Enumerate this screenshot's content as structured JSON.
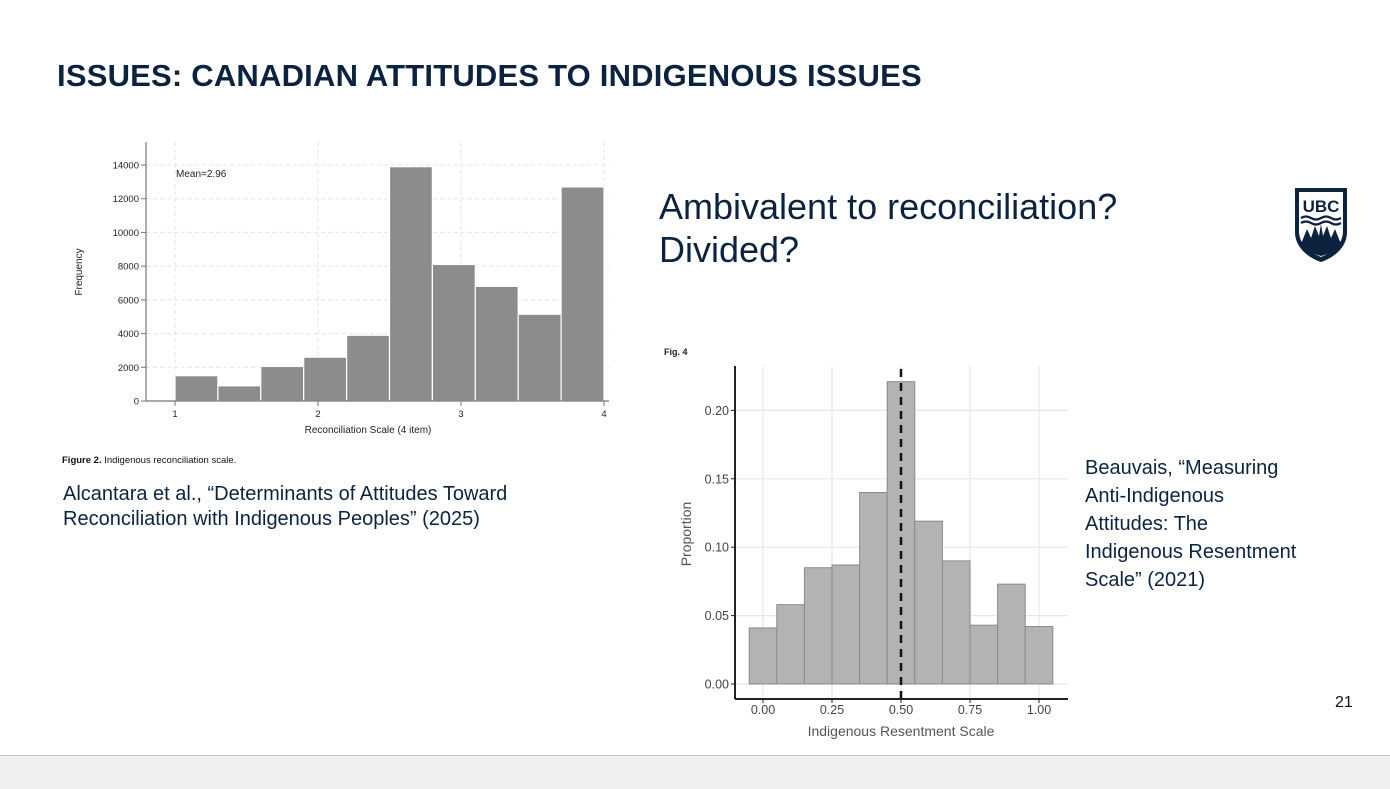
{
  "slide": {
    "title": "ISSUES: CANADIAN ATTITUDES TO INDIGENOUS ISSUES",
    "subtitle_line1": "Ambivalent to reconciliation?",
    "subtitle_line2": "Divided?",
    "logo_text": "UBC",
    "page_number": "21",
    "colors": {
      "title": "#0c2340",
      "bar_left": "#8c8c8c",
      "bar_right": "#b3b3b3",
      "footer": "#f0f0f0"
    }
  },
  "left_figure": {
    "caption_label": "Figure 2.",
    "caption_text": "Indigenous reconciliation scale.",
    "citation_line1": "Alcantara et al., “Determinants of Attitudes Toward",
    "citation_line2": "Reconciliation with Indigenous Peoples” (2025)"
  },
  "right_figure": {
    "fig_label": "Fig. 4",
    "citation_lines": [
      "Beauvais, “Measuring",
      "Anti-Indigenous",
      "Attitudes: The",
      "Indigenous Resentment",
      "Scale” (2021)"
    ]
  },
  "chart_data": [
    {
      "type": "bar",
      "subtype": "histogram",
      "title": "",
      "annotation": "Mean=2.96",
      "xlabel": "Reconciliation Scale (4 item)",
      "ylabel": "Frequency",
      "xticks": [
        "1",
        "2",
        "3",
        "4"
      ],
      "yticks": [
        "0",
        "2000",
        "4000",
        "6000",
        "8000",
        "10000",
        "12000",
        "14000"
      ],
      "xlim": [
        1,
        4
      ],
      "ylim": [
        0,
        14000
      ],
      "bin_edges": [
        1.0,
        1.3,
        1.6,
        1.9,
        2.2,
        2.5,
        2.8,
        3.1,
        3.4,
        3.7,
        4.0
      ],
      "values": [
        1500,
        900,
        2050,
        2600,
        3900,
        13900,
        8100,
        6800,
        5150,
        12700
      ],
      "grid": true,
      "legend": "none"
    },
    {
      "type": "bar",
      "subtype": "histogram",
      "title": "Fig. 4",
      "xlabel": "Indigenous Resentment Scale",
      "ylabel": "Proportion",
      "xticks": [
        "0.00",
        "0.25",
        "0.50",
        "0.75",
        "1.00"
      ],
      "yticks": [
        "0.00",
        "0.05",
        "0.10",
        "0.15",
        "0.20"
      ],
      "xlim": [
        -0.05,
        1.05
      ],
      "ylim": [
        0,
        0.22
      ],
      "bin_centers": [
        0.0,
        0.1,
        0.2,
        0.3,
        0.4,
        0.5,
        0.6,
        0.7,
        0.8,
        0.9,
        1.0
      ],
      "values": [
        0.041,
        0.058,
        0.085,
        0.087,
        0.14,
        0.221,
        0.119,
        0.09,
        0.043,
        0.073,
        0.042
      ],
      "reference_line": {
        "x": 0.5,
        "style": "dashed"
      },
      "grid": true,
      "legend": "none"
    }
  ]
}
